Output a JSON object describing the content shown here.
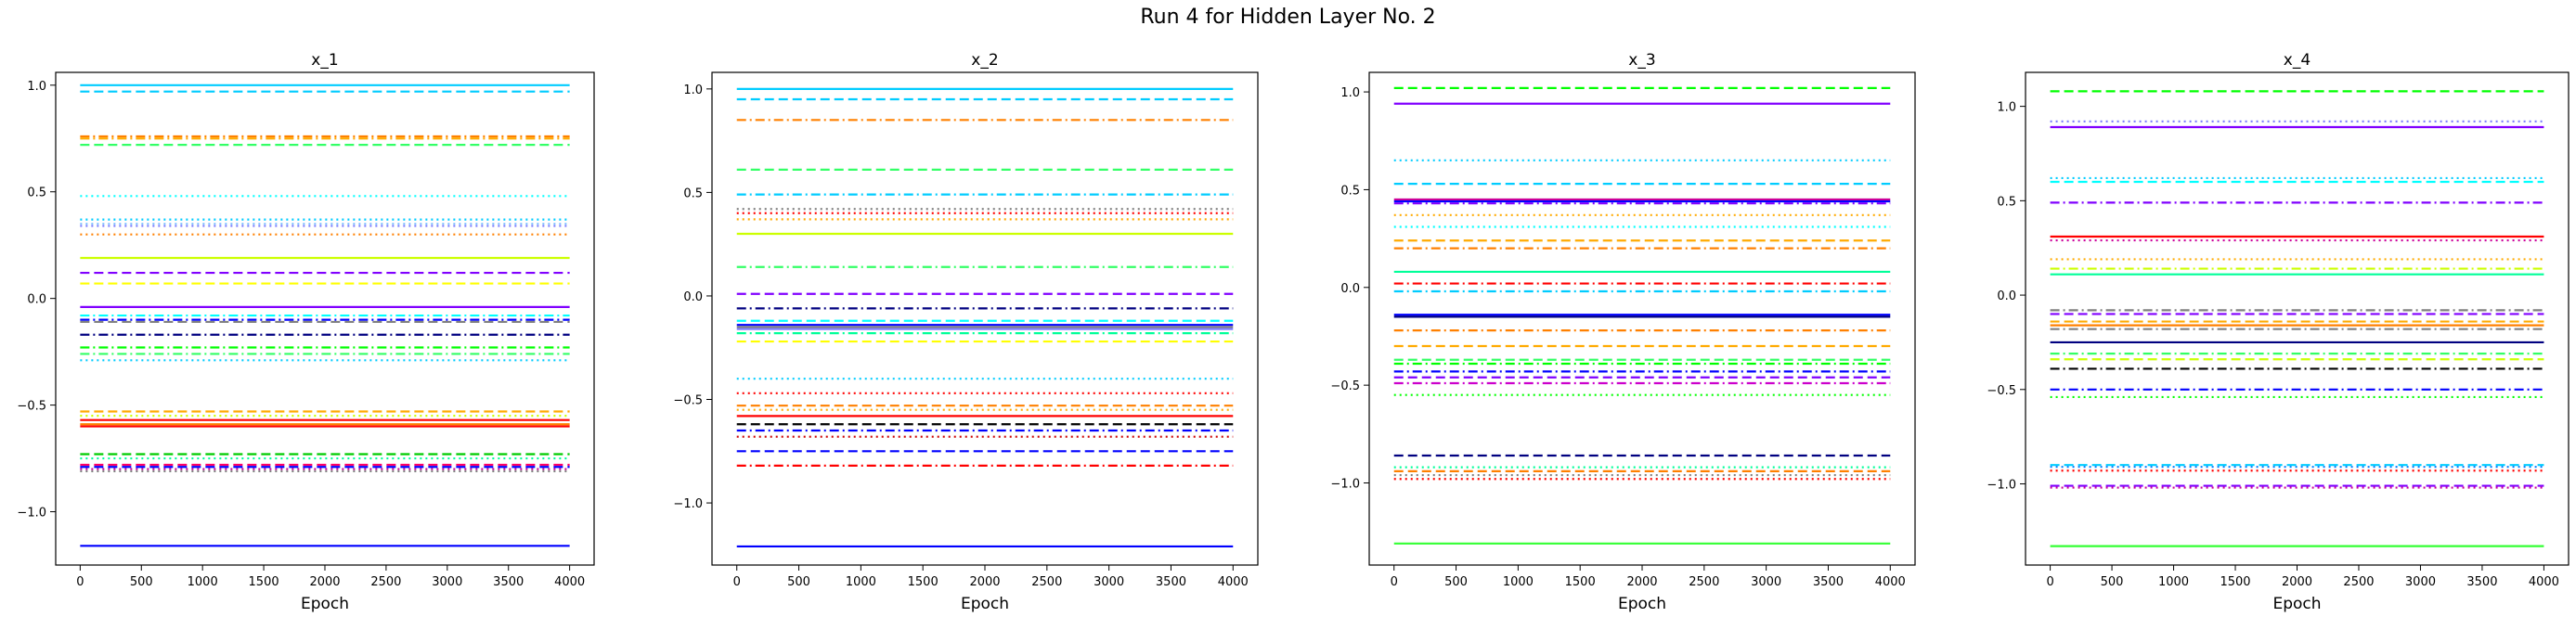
{
  "figure": {
    "title": "Run 4 for Hidden Layer No. 2"
  },
  "palette": [
    "#0000ff",
    "#8000ff",
    "#00ccff",
    "#00ffff",
    "#00ff00",
    "#33ff66",
    "#ff8000",
    "#ffaa00",
    "#ffff00",
    "#ccff00",
    "#ff0000",
    "#ff0066",
    "#cc0099",
    "#000080",
    "#000000",
    "#808080",
    "#ff66cc",
    "#66ff99"
  ],
  "chart_data": [
    {
      "type": "line",
      "title": "x_1",
      "xlabel": "Epoch",
      "ylabel": "",
      "xlim": [
        -200,
        4200
      ],
      "ylim": [
        -1.25,
        1.06
      ],
      "xticks": [
        "0",
        "500",
        "1000",
        "1500",
        "2000",
        "2500",
        "3000",
        "3500",
        "4000"
      ],
      "yticks": [
        "1.0",
        "0.5",
        "0.0",
        "−0.5",
        "−1.0"
      ],
      "ytick_values": [
        1.0,
        0.5,
        0.0,
        -0.5,
        -1.0
      ],
      "x_range": [
        0,
        4000
      ],
      "series_values": [
        1.0,
        0.97,
        0.76,
        0.75,
        0.72,
        0.48,
        0.37,
        0.35,
        0.34,
        0.3,
        0.19,
        0.12,
        0.07,
        -0.04,
        -0.08,
        -0.1,
        -0.11,
        -0.17,
        -0.23,
        -0.26,
        -0.29,
        -0.53,
        -0.55,
        -0.57,
        -0.59,
        -0.6,
        -0.73,
        -0.75,
        -0.78,
        -0.79,
        -0.8,
        -0.81,
        -1.16
      ],
      "series_colors": [
        "#00ccff",
        "#00ccff",
        "#ff8000",
        "#ffaa00",
        "#33ff66",
        "#00ffff",
        "#00ccff",
        "#80c0ff",
        "#8080ff",
        "#ff8000",
        "#ccff00",
        "#8000ff",
        "#ffff00",
        "#8000ff",
        "#00ffff",
        "#0000ff",
        "#808080",
        "#000080",
        "#00ff00",
        "#33ff66",
        "#00ccff",
        "#ffaa00",
        "#ccff00",
        "#ff0000",
        "#ff8000",
        "#ff0000",
        "#00cc00",
        "#00ff99",
        "#ff0066",
        "#0000ff",
        "#cc0099",
        "#808080",
        "#0000ff"
      ],
      "series_styles": [
        "solid",
        "dashed",
        "dashdot",
        "dashdot",
        "dashed",
        "dotted",
        "dotted",
        "dotted",
        "dotted",
        "dotted",
        "solid",
        "dashed",
        "dashed",
        "solid",
        "dashdot",
        "dashdot",
        "dashed",
        "dashdot",
        "dashdot",
        "dashdot",
        "dotted",
        "dashed",
        "dotted",
        "solid",
        "solid",
        "solid",
        "dashed",
        "dotted",
        "dashed",
        "dashed",
        "dotted",
        "dotted",
        "solid"
      ]
    },
    {
      "type": "line",
      "title": "x_2",
      "xlabel": "Epoch",
      "ylabel": "",
      "xlim": [
        -200,
        4200
      ],
      "ylim": [
        -1.3,
        1.08
      ],
      "xticks": [
        "0",
        "500",
        "1000",
        "1500",
        "2000",
        "2500",
        "3000",
        "3500",
        "4000"
      ],
      "yticks": [
        "1.0",
        "0.5",
        "0.0",
        "−0.5",
        "−1.0"
      ],
      "ytick_values": [
        1.0,
        0.5,
        0.0,
        -0.5,
        -1.0
      ],
      "x_range": [
        0,
        4000
      ],
      "series_values": [
        1.0,
        0.95,
        0.85,
        0.61,
        0.49,
        0.42,
        0.4,
        0.37,
        0.3,
        0.14,
        0.01,
        -0.06,
        -0.12,
        -0.14,
        -0.15,
        -0.16,
        -0.18,
        -0.22,
        -0.4,
        -0.47,
        -0.53,
        -0.55,
        -0.58,
        -0.62,
        -0.65,
        -0.68,
        -0.75,
        -0.82,
        -1.21
      ],
      "series_colors": [
        "#00ccff",
        "#00ccff",
        "#ff8000",
        "#33ff66",
        "#00ccff",
        "#808080",
        "#ff0000",
        "#ffaa00",
        "#ccff00",
        "#33ff66",
        "#8000ff",
        "#000080",
        "#00ffff",
        "#0000ff",
        "#808080",
        "#8080ff",
        "#00ff99",
        "#ffff00",
        "#00ccff",
        "#ff0000",
        "#ff8000",
        "#ffaa00",
        "#ff0000",
        "#000000",
        "#0000ff",
        "#cc0000",
        "#0000ff",
        "#ff0000",
        "#0000ff"
      ],
      "series_styles": [
        "solid",
        "dashed",
        "dashdot",
        "dashed",
        "dashdot",
        "dotted",
        "dotted",
        "dotted",
        "solid",
        "dashdot",
        "dashed",
        "dashdot",
        "dashed",
        "solid",
        "solid",
        "solid",
        "dashdot",
        "dashed",
        "dotted",
        "dotted",
        "dashed",
        "dotted",
        "solid",
        "dashed",
        "dashdot",
        "dotted",
        "dashed",
        "dashdot",
        "solid"
      ]
    },
    {
      "type": "line",
      "title": "x_3",
      "xlabel": "Epoch",
      "ylabel": "",
      "xlim": [
        -200,
        4200
      ],
      "ylim": [
        -1.42,
        1.1
      ],
      "xticks": [
        "0",
        "500",
        "1000",
        "1500",
        "2000",
        "2500",
        "3000",
        "3500",
        "4000"
      ],
      "yticks": [
        "1.0",
        "0.5",
        "0.0",
        "−0.5",
        "−1.0"
      ],
      "ytick_values": [
        1.0,
        0.5,
        0.0,
        -0.5,
        -1.0
      ],
      "x_range": [
        0,
        4000
      ],
      "series_values": [
        1.02,
        0.94,
        0.65,
        0.53,
        0.45,
        0.44,
        0.43,
        0.37,
        0.31,
        0.24,
        0.2,
        0.08,
        0.02,
        -0.02,
        -0.14,
        -0.15,
        -0.22,
        -0.3,
        -0.37,
        -0.39,
        -0.43,
        -0.46,
        -0.49,
        -0.55,
        -0.86,
        -0.92,
        -0.94,
        -0.96,
        -0.98,
        -1.31
      ],
      "series_colors": [
        "#00ff00",
        "#8000ff",
        "#00ccff",
        "#00ccff",
        "#cc0099",
        "#0000ff",
        "#8000ff",
        "#ffaa00",
        "#00ffff",
        "#ffaa00",
        "#ff8000",
        "#00ff99",
        "#ff0000",
        "#00ccff",
        "#0000ff",
        "#000080",
        "#ff8000",
        "#ffaa00",
        "#33ff66",
        "#00ff00",
        "#0000ff",
        "#8000ff",
        "#cc00cc",
        "#00ff00",
        "#000080",
        "#00ff99",
        "#ff8000",
        "#808080",
        "#ff0000",
        "#33ff33"
      ],
      "series_styles": [
        "dashed",
        "solid",
        "dotted",
        "dashed",
        "solid",
        "solid",
        "dashdot",
        "dotted",
        "dotted",
        "dashed",
        "dashdot",
        "solid",
        "dashdot",
        "dashdot",
        "solid",
        "solid",
        "dashdot",
        "dashed",
        "dashed",
        "dashdot",
        "dashdot",
        "dashed",
        "dashdot",
        "dotted",
        "dashed",
        "dotted",
        "dashed",
        "dotted",
        "dotted",
        "solid"
      ]
    },
    {
      "type": "line",
      "title": "x_4",
      "xlabel": "Epoch",
      "ylabel": "",
      "xlim": [
        -200,
        4200
      ],
      "ylim": [
        -1.43,
        1.18
      ],
      "xticks": [
        "0",
        "500",
        "1000",
        "1500",
        "2000",
        "2500",
        "3000",
        "3500",
        "4000"
      ],
      "yticks": [
        "1.0",
        "0.5",
        "0.0",
        "−0.5",
        "−1.0"
      ],
      "ytick_values": [
        1.0,
        0.5,
        0.0,
        -0.5,
        -1.0
      ],
      "x_range": [
        0,
        4000
      ],
      "series_values": [
        1.08,
        0.92,
        0.89,
        0.62,
        0.6,
        0.49,
        0.31,
        0.29,
        0.19,
        0.14,
        0.11,
        -0.08,
        -0.1,
        -0.14,
        -0.16,
        -0.18,
        -0.25,
        -0.31,
        -0.34,
        -0.39,
        -0.5,
        -0.54,
        -0.9,
        -0.91,
        -0.93,
        -1.01,
        -1.02,
        -1.33
      ],
      "series_colors": [
        "#00ff00",
        "#8080ff",
        "#8000ff",
        "#00ccff",
        "#00ffff",
        "#8000ff",
        "#ff0000",
        "#cc0099",
        "#ffaa00",
        "#ccff00",
        "#00ff99",
        "#808080",
        "#8000ff",
        "#ffaa00",
        "#ff8000",
        "#808080",
        "#000080",
        "#33ff66",
        "#ccff00",
        "#000000",
        "#0000ff",
        "#00ff00",
        "#00ccff",
        "#0080ff",
        "#ff0000",
        "#8000ff",
        "#cc0099",
        "#33ff33"
      ],
      "series_styles": [
        "dashed",
        "dotted",
        "solid",
        "dotted",
        "dashed",
        "dashdot",
        "solid",
        "dotted",
        "dotted",
        "dashdot",
        "solid",
        "dashdot",
        "dashed",
        "dashed",
        "solid",
        "dashdot",
        "solid",
        "dashdot",
        "dashed",
        "dashdot",
        "dashdot",
        "dotted",
        "dashed",
        "dotted",
        "dotted",
        "dashed",
        "dotted",
        "solid"
      ]
    }
  ]
}
